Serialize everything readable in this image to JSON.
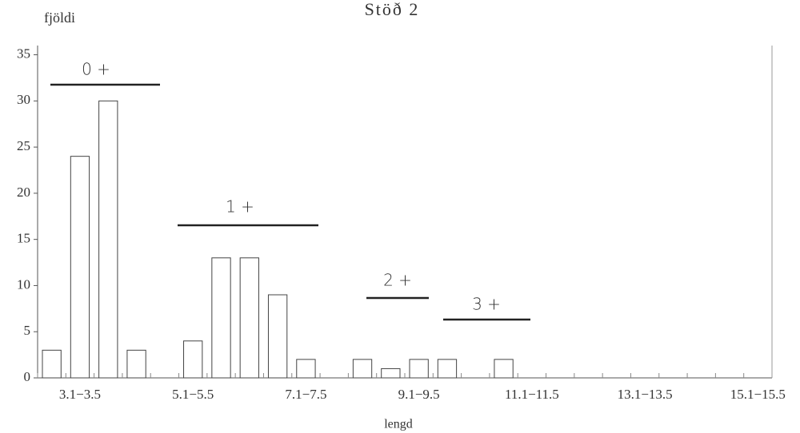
{
  "chart_data": {
    "type": "bar",
    "title": "Stöð 2",
    "y_label": "fjöldi",
    "x_label": "lengd",
    "categories": [
      null,
      "3.1−3.5",
      null,
      null,
      null,
      "5.1−5.5",
      null,
      null,
      null,
      "7.1−7.5",
      null,
      null,
      null,
      "9.1−9.5",
      null,
      null,
      null,
      "11.1−11.5",
      null,
      null,
      null,
      "13.1−13.5",
      null,
      null,
      null,
      "15.1−15.5"
    ],
    "values": [
      3,
      24,
      30,
      3,
      0,
      4,
      13,
      13,
      9,
      2,
      0,
      2,
      1,
      2,
      2,
      0,
      2,
      0,
      0,
      0,
      0,
      0,
      0,
      0,
      0,
      0
    ],
    "color": "#ffffff",
    "ylim": [
      0,
      36
    ],
    "yticks": [
      0,
      5,
      10,
      15,
      20,
      25,
      30,
      35
    ],
    "grid": false,
    "annotations": [
      "0 +",
      "1 +",
      "2 +",
      "3 +"
    ]
  }
}
